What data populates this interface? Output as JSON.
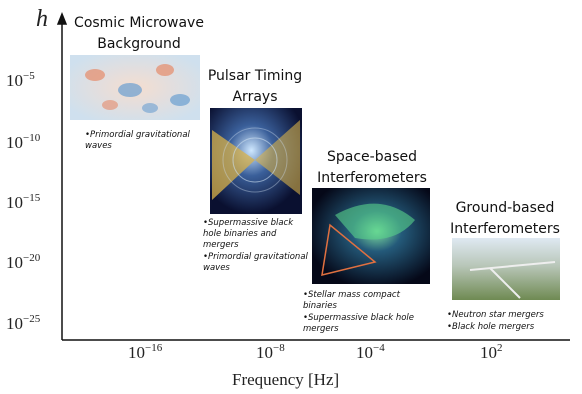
{
  "axes": {
    "y_label": "h",
    "x_label": "Frequency [Hz]",
    "y_ticks": [
      {
        "base": "10",
        "exponent": "−5"
      },
      {
        "base": "10",
        "exponent": "−10"
      },
      {
        "base": "10",
        "exponent": "−15"
      },
      {
        "base": "10",
        "exponent": "−20"
      },
      {
        "base": "10",
        "exponent": "−25"
      }
    ],
    "x_ticks": [
      {
        "base": "10",
        "exponent": "−16"
      },
      {
        "base": "10",
        "exponent": "−8"
      },
      {
        "base": "10",
        "exponent": "−4"
      },
      {
        "base": "10",
        "exponent": "2"
      }
    ]
  },
  "panels": [
    {
      "title": [
        "Cosmic Microwave",
        "Background"
      ],
      "bullets": [
        "•Primordial gravitational waves"
      ]
    },
    {
      "title": [
        "Pulsar Timing",
        "Arrays"
      ],
      "bullets": [
        "•Supermassive black hole binaries and mergers",
        "•Primordial gravitational waves"
      ]
    },
    {
      "title": [
        "Space-based",
        "Interferometers"
      ],
      "bullets": [
        "•Stellar mass compact binaries",
        "•Supermassive black hole mergers"
      ]
    },
    {
      "title": [
        "Ground-based",
        "Interferometers"
      ],
      "bullets": [
        "•Neutron star mergers",
        "•Black hole mergers"
      ]
    }
  ]
}
